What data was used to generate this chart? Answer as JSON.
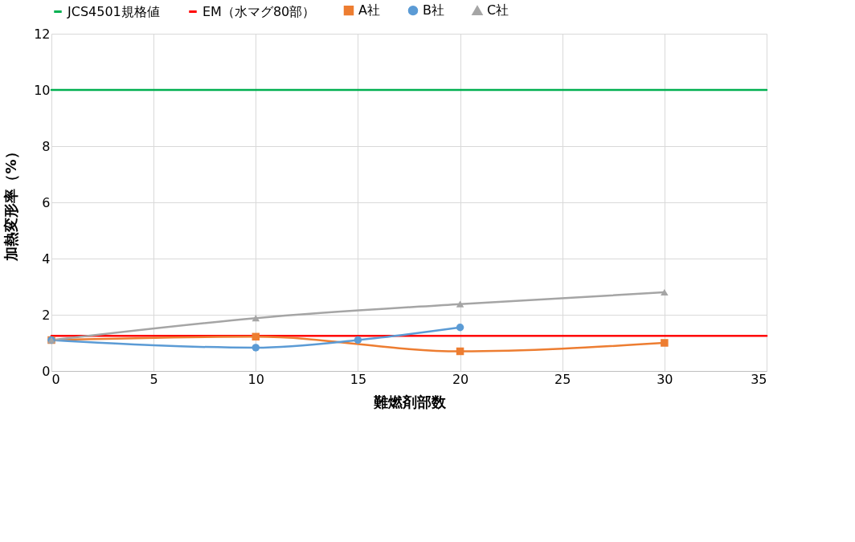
{
  "chart_data": {
    "type": "line",
    "xlabel": "難燃剤部数",
    "ylabel": "加熱変形率（%）",
    "x": [
      0,
      10,
      20,
      30
    ],
    "xlim": [
      0,
      35
    ],
    "xticks": [
      0,
      5,
      10,
      15,
      20,
      25,
      30,
      35
    ],
    "ylim": [
      0,
      12
    ],
    "yticks": [
      0,
      2,
      4,
      6,
      8,
      10,
      12
    ],
    "grid": true,
    "legend": "top",
    "line_style": "solid",
    "series": [
      {
        "name": "JCS4501規格値",
        "color": "#00b050",
        "x": [
          0,
          35
        ],
        "values": [
          10,
          10
        ],
        "marker": "none"
      },
      {
        "name": "EM（水マグ80部）",
        "color": "#ff0000",
        "x": [
          0,
          35
        ],
        "values": [
          1.25,
          1.25
        ],
        "marker": "none"
      },
      {
        "name": "A社",
        "color": "#ed7d31",
        "values": [
          1.1,
          1.22,
          0.7,
          1.0
        ],
        "marker": "square"
      },
      {
        "name": "B社",
        "color": "#5b9bd5",
        "x": [
          0,
          10,
          15,
          20
        ],
        "values": [
          1.1,
          0.83,
          1.1,
          1.55
        ],
        "marker": "circle"
      },
      {
        "name": "C社",
        "color": "#a5a5a5",
        "values": [
          1.1,
          1.88,
          2.38,
          2.8
        ],
        "marker": "triangle"
      }
    ]
  }
}
